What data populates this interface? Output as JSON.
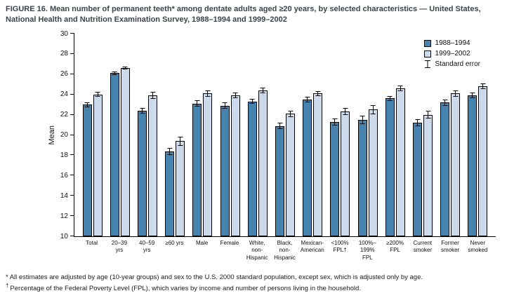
{
  "title": "FIGURE 16. Mean number of permanent teeth* among dentate adults aged ≥20 years, by selected characteristics — United States, National Health and Nutrition Examination Survey, 1988–1994 and 1999–2002",
  "colors": {
    "series1": "#4683AE",
    "series2": "#CCDAEB",
    "bar_border": "#000000"
  },
  "legend": {
    "standard_error_label": "Standard error"
  },
  "footnotes": [
    {
      "marker": "*",
      "text": "All estimates are adjusted by age (10-year groups) and sex to the U.S. 2000 standard population, except sex, which is adjusted only by age."
    },
    {
      "marker": "†",
      "text": "Percentage of the Federal Poverty Level (FPL), which varies by income and number of persons living in the household."
    }
  ],
  "chart_data": {
    "type": "bar",
    "title": "Mean number of permanent teeth among dentate adults aged ≥20 years, 1988–1994 and 1999–2002",
    "xlabel": "",
    "ylabel": "Mean",
    "ylim": [
      10,
      30
    ],
    "ytick_step": 2,
    "grid": false,
    "legend_position": "top-right",
    "categories": [
      "Total",
      "20–39 yrs",
      "40–59 yrs",
      "≥60 yrs",
      "Male",
      "Female",
      "White, non-Hispanic",
      "Black, non-Hispanic",
      "Mexican-American",
      "<100% FPL†",
      "100%–199% FPL",
      "≥200% FPL",
      "Current smoker",
      "Former smoker",
      "Never smoked"
    ],
    "category_lines": [
      [
        "Total"
      ],
      [
        "20–39",
        "yrs"
      ],
      [
        "40–59",
        "yrs"
      ],
      [
        "≥60 yrs"
      ],
      [
        "Male"
      ],
      [
        "Female"
      ],
      [
        "White,",
        "non-",
        "Hispanic"
      ],
      [
        "Black,",
        "non-",
        "Hispanic"
      ],
      [
        "Mexican-",
        "American"
      ],
      [
        "<100%",
        "FPL†"
      ],
      [
        "100%–",
        "199%",
        "FPL"
      ],
      [
        "≥200%",
        "FPL"
      ],
      [
        "Current",
        "smoker"
      ],
      [
        "Former",
        "smoker"
      ],
      [
        "Never",
        "smoked"
      ]
    ],
    "series": [
      {
        "name": "1988–1994",
        "values": [
          23.0,
          26.1,
          22.4,
          18.4,
          23.1,
          22.9,
          23.3,
          20.9,
          23.5,
          21.3,
          21.5,
          23.6,
          21.2,
          23.2,
          23.9
        ],
        "stderr": [
          0.25,
          0.15,
          0.3,
          0.35,
          0.3,
          0.3,
          0.25,
          0.3,
          0.25,
          0.35,
          0.4,
          0.25,
          0.35,
          0.3,
          0.3
        ]
      },
      {
        "name": "1999–2002",
        "values": [
          24.0,
          26.6,
          23.9,
          19.4,
          24.1,
          23.9,
          24.4,
          22.1,
          24.1,
          22.3,
          22.5,
          24.6,
          22.0,
          24.1,
          24.8
        ],
        "stderr": [
          0.25,
          0.15,
          0.35,
          0.45,
          0.3,
          0.3,
          0.25,
          0.3,
          0.25,
          0.35,
          0.45,
          0.3,
          0.4,
          0.3,
          0.3
        ]
      }
    ]
  }
}
